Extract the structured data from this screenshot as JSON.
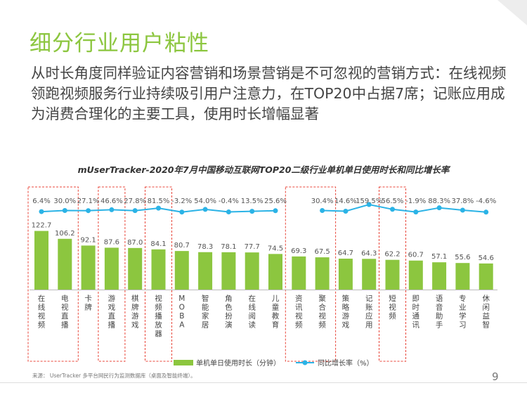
{
  "page": {
    "title": "细分行业用户粘性",
    "subtitle": "从时长角度同样验证内容营销和场景营销是不可忽视的营销方式：在线视频领跑视频服务行业持续吸引用户注意力，在TOP20中占据7席；记账应用成为消费合理化的主要工具，使用时长增幅显著",
    "source": "来源： UserTracker 多平台网民行为监测数据库（桌面及智能终端）。",
    "page_number": "9"
  },
  "colors": {
    "bar": "#8cc63f",
    "line": "#2bb3e6",
    "highlight_box": "#e8463a",
    "title": "#8cc63f"
  },
  "chart_data": {
    "type": "bar+line",
    "title": "mUserTracker-2020年7月中国移动互联网TOP20二级行业单机单日使用时长和同比增长率",
    "categories": [
      "在线视频",
      "电视直播",
      "卡牌",
      "游戏直播",
      "棋牌游戏",
      "视频播放器",
      "MOBA",
      "智能家居",
      "角色扮演",
      "在线阅读",
      "儿童教育",
      "资讯视频",
      "聚合视频",
      "策略游戏",
      "记账应用",
      "短视频",
      "即时通讯",
      "语音助手",
      "专业学习",
      "休闲益智"
    ],
    "series": [
      {
        "name": "单机单日使用时长（分钟）",
        "type": "bar",
        "values": [
          122.7,
          106.2,
          92.1,
          87.6,
          87.0,
          84.1,
          80.7,
          78.3,
          78.1,
          77.7,
          74.5,
          69.3,
          67.5,
          64.7,
          64.3,
          62.2,
          60.7,
          57.1,
          55.6,
          54.6
        ],
        "labels": [
          "122.7",
          "106.2",
          "92.1",
          "87.6",
          "87.0",
          "84.1",
          "80.7",
          "78.3",
          "78.1",
          "77.7",
          "74.5",
          "69.3",
          "67.5",
          "64.7",
          "64.3",
          "62.2",
          "60.7",
          "57.1",
          "55.6",
          "54.6"
        ]
      },
      {
        "name": "同比增长率（%）",
        "type": "line",
        "values": [
          6.4,
          30.0,
          27.1,
          46.6,
          27.8,
          81.5,
          -3.2,
          54.0,
          -0.4,
          13.5,
          25.6,
          null,
          30.4,
          14.6,
          159.5,
          56.5,
          -1.9,
          88.3,
          37.8,
          -4.6
        ],
        "labels": [
          "6.4%",
          "30.0%",
          "27.1%",
          "46.6%",
          "27.8%",
          "81.5%",
          "-3.2%",
          "54.0%",
          "-0.4%",
          "13.5%",
          "25.6%",
          "",
          "30.4%",
          "14.6%",
          "159.5%",
          "56.5%",
          "-1.9%",
          "88.3%",
          "37.8%",
          "-4.6%"
        ]
      }
    ],
    "highlighted_categories": [
      "在线视频",
      "电视直播",
      "游戏直播",
      "视频播放器",
      "资讯视频",
      "聚合视频",
      "短视频"
    ],
    "legend": [
      "单机单日使用时长（分钟）",
      "同比增长率（%）"
    ],
    "legend_position": "bottom"
  }
}
